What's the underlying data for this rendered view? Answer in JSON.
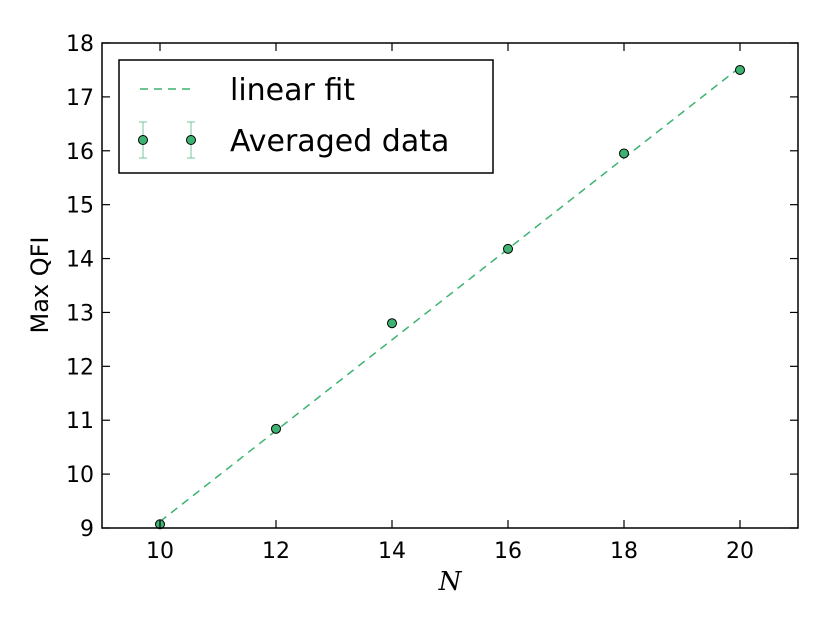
{
  "chart_data": {
    "type": "scatter",
    "title": "",
    "xlabel": "N",
    "ylabel": "Max QFI",
    "xlim": [
      9,
      21
    ],
    "ylim": [
      9,
      18
    ],
    "xticks": [
      10,
      12,
      14,
      16,
      18,
      20
    ],
    "yticks": [
      9,
      10,
      11,
      12,
      13,
      14,
      15,
      16,
      17,
      18
    ],
    "grid": false,
    "legend_position": "top-left",
    "series": [
      {
        "name": "Averaged data",
        "kind": "errorbar-points",
        "color": "#3cb371",
        "x": [
          10,
          12,
          14,
          16,
          18,
          20
        ],
        "y": [
          9.07,
          10.84,
          12.8,
          14.18,
          15.95,
          17.5
        ]
      },
      {
        "name": "linear fit",
        "kind": "dashed-line",
        "color": "#3cb371",
        "x": [
          10,
          20
        ],
        "y": [
          9.12,
          17.55
        ]
      }
    ]
  }
}
